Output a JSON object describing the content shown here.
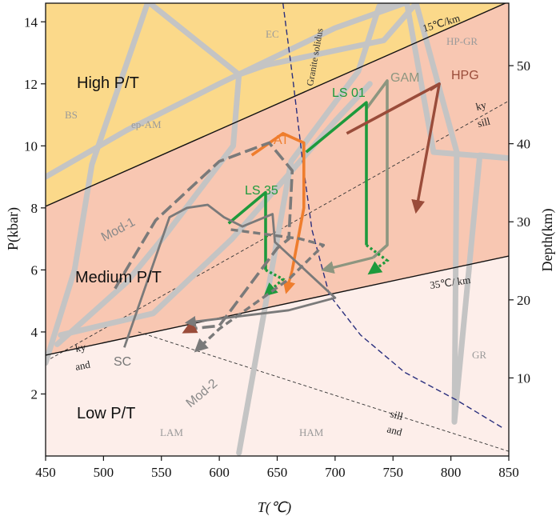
{
  "chart_data": {
    "type": "line",
    "title": "",
    "xlabel": "T(℃)",
    "ylabel": "P(kbar)",
    "y2label": "Depth(km)",
    "xlim": [
      450,
      850
    ],
    "ylim": [
      0,
      14.6
    ],
    "y2lim": [
      0,
      58
    ],
    "x_ticks": [
      450,
      500,
      550,
      600,
      650,
      700,
      750,
      800,
      850
    ],
    "y_ticks": [
      2,
      4,
      6,
      8,
      10,
      12,
      14
    ],
    "y2_ticks": [
      10,
      20,
      30,
      40,
      50
    ],
    "colors": {
      "high_pt": "#fbd98a",
      "medium_pt": "#f8c7b2",
      "low_pt": "#fdeeea",
      "facies_line": "#c4c4c4",
      "at": "#ef7d2d",
      "ls": "#1d9a3c",
      "gam": "#8d9680",
      "hpg": "#9a4c3a",
      "dark_gray": "#7a7a7a",
      "solidus": "#2a2f7e"
    },
    "fields": [
      {
        "label": "High P/T"
      },
      {
        "label": "Medium P/T"
      },
      {
        "label": "Low P/T"
      }
    ],
    "facies_labels": [
      "EC",
      "BS",
      "ep-AM",
      "HP-GR",
      "GR",
      "LAM",
      "HAM"
    ],
    "gradient_labels": [
      "15℃/km",
      "35℃/ km"
    ],
    "reaction_labels": [
      "ky",
      "sill",
      "ky",
      "and",
      "sill",
      "and"
    ],
    "solidus_label": "Granite solidus",
    "field_boundaries": [
      {
        "name": "15C/km",
        "x": [
          450,
          850
        ],
        "y": [
          8.05,
          14.65
        ]
      },
      {
        "name": "35C/km",
        "x": [
          450,
          850
        ],
        "y": [
          3.25,
          6.45
        ]
      }
    ],
    "reaction_lines": [
      {
        "name": "ky-sill",
        "x": [
          450,
          850
        ],
        "y": [
          3.05,
          11.45
        ]
      },
      {
        "name": "and-sill",
        "x": [
          530,
          850
        ],
        "y": [
          4.0,
          0.15
        ]
      }
    ],
    "facies_boundaries": [
      {
        "x": [
          450,
          475,
          490,
          538
        ],
        "y": [
          3.0,
          6.0,
          9.4,
          14.6
        ]
      },
      {
        "x": [
          450,
          520,
          600,
          700,
          760
        ],
        "y": [
          9.0,
          10.5,
          12.0,
          13.8,
          14.6
        ]
      },
      {
        "x": [
          463,
          543,
          611,
          658,
          700,
          730
        ],
        "y": [
          3.9,
          4.6,
          7.0,
          9.0,
          10.8,
          12.0
        ]
      },
      {
        "x": [
          540,
          617,
          640,
          742,
          770
        ],
        "y": [
          14.6,
          12.3,
          12.6,
          13.4,
          14.6
        ]
      },
      {
        "x": [
          617,
          612,
          555,
          520,
          460
        ],
        "y": [
          12.3,
          10.0,
          7.2,
          5.6,
          3.6
        ]
      },
      {
        "x": [
          770,
          805,
          803,
          825,
          850
        ],
        "y": [
          14.6,
          9.8,
          1.1,
          9.7,
          9.6
        ]
      },
      {
        "x": [
          617,
          662,
          720,
          738,
          762,
          785,
          850
        ],
        "y": [
          0.1,
          9.5,
          12.4,
          14.5,
          14.6,
          9.8,
          9.6
        ]
      }
    ],
    "series": [
      {
        "name": "AT",
        "x": [
          628,
          655,
          673,
          673,
          663,
          658
        ],
        "y": [
          9.7,
          10.4,
          10.1,
          8.0,
          6.0,
          5.3
        ]
      },
      {
        "name": "LS 01",
        "x": [
          675,
          727,
          727,
          745,
          730
        ],
        "y": [
          9.8,
          11.4,
          6.8,
          6.3,
          5.9
        ]
      },
      {
        "name": "LS 35",
        "x": [
          608,
          640,
          640,
          655,
          640
        ],
        "y": [
          7.5,
          8.5,
          6.0,
          5.7,
          5.2
        ]
      },
      {
        "name": "GAM",
        "x": [
          727,
          745,
          745,
          733,
          690
        ],
        "y": [
          11.2,
          12.1,
          6.8,
          6.4,
          6.0
        ]
      },
      {
        "name": "HPG",
        "x": [
          710,
          790,
          782,
          790,
          770
        ],
        "y": [
          10.4,
          12.0,
          11.8,
          12.0,
          7.9
        ]
      },
      {
        "name": "Mod-1",
        "x": [
          510,
          545,
          600,
          643,
          663,
          660,
          650,
          600,
          575,
          570
        ],
        "y": [
          5.4,
          7.6,
          9.5,
          10.1,
          9.2,
          7.0,
          6.7,
          4.2,
          4.1,
          4.0
        ]
      },
      {
        "name": "Mod-2",
        "x": [
          610,
          670,
          690,
          660,
          600,
          580
        ],
        "y": [
          7.3,
          7.0,
          6.8,
          5.7,
          4.1,
          3.4
        ]
      },
      {
        "name": "SC",
        "x": [
          518,
          557,
          572,
          590,
          604,
          620,
          646,
          648,
          700,
          660,
          572
        ],
        "y": [
          3.5,
          7.7,
          8.0,
          8.1,
          7.7,
          7.4,
          7.8,
          6.9,
          5.1,
          4.7,
          4.3
        ]
      }
    ],
    "series_labels": [
      "AT",
      "LS 01",
      "LS 35",
      "GAM",
      "HPG",
      "Mod-1",
      "Mod-2",
      "SC"
    ],
    "solidus": {
      "x": [
        655,
        664,
        672,
        680,
        695,
        722,
        760,
        805,
        845
      ],
      "y": [
        14.6,
        12.0,
        9.5,
        7.3,
        5.2,
        3.9,
        2.7,
        1.8,
        0.9
      ]
    }
  }
}
